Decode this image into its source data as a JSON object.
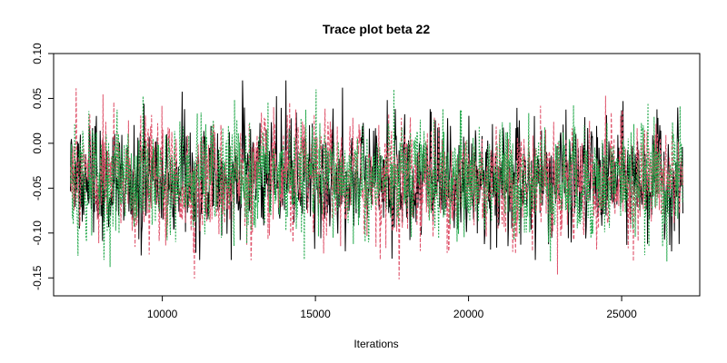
{
  "chart_data": {
    "type": "line",
    "title": "Trace plot beta 22",
    "xlabel": "Iterations",
    "ylabel": "",
    "xlim": [
      6450,
      27550
    ],
    "ylim": [
      -0.17,
      0.1
    ],
    "x_start": 7000,
    "x_end": 27000,
    "grid": false,
    "x_ticks": [
      10000,
      15000,
      20000,
      25000
    ],
    "y_ticks": [
      -0.15,
      -0.1,
      -0.05,
      0.0,
      0.05,
      0.1
    ],
    "y_tick_labels": [
      "-0.15",
      "-0.10",
      "-0.05",
      "0.00",
      "0.05",
      "0.10"
    ],
    "series": [
      {
        "color": "#000000",
        "dash": "solid",
        "mean": -0.04,
        "sd": 0.03,
        "min": -0.13,
        "max": 0.07
      },
      {
        "color": "#DF536B",
        "dash": "dashed",
        "mean": -0.04,
        "sd": 0.032,
        "min": -0.16,
        "max": 0.093
      },
      {
        "color": "#22A84A",
        "dash": "dotted",
        "mean": -0.04,
        "sd": 0.03,
        "min": -0.14,
        "max": 0.06
      }
    ]
  }
}
